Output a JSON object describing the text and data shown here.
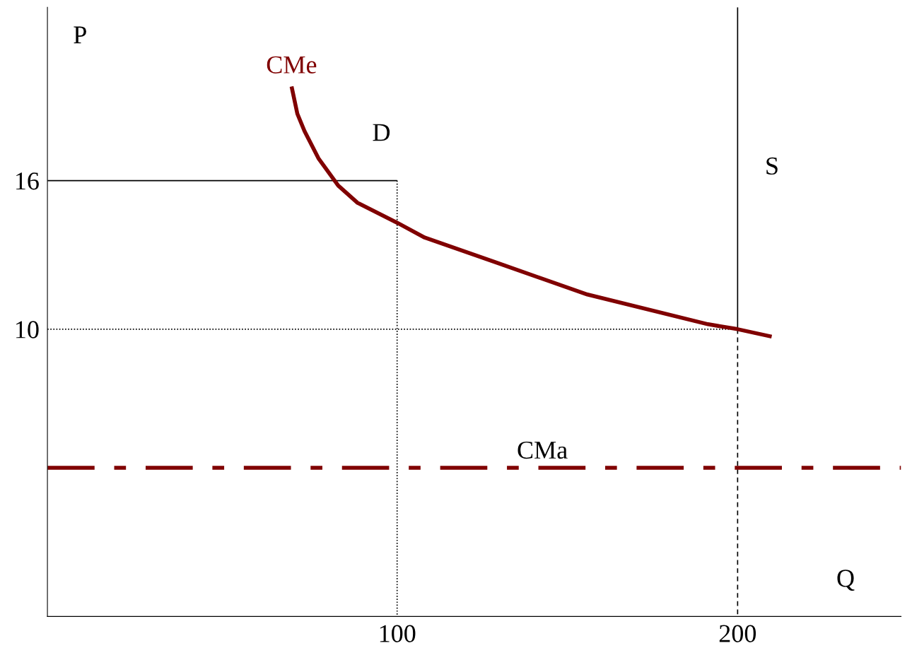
{
  "chart_data": {
    "type": "line",
    "xlabel": "Q",
    "ylabel": "P",
    "xlim": [
      -2.7,
      248
    ],
    "ylim": [
      -1.6,
      23
    ],
    "xticks": [
      100,
      200
    ],
    "yticks": [
      10,
      16
    ],
    "grid": false,
    "series": [
      {
        "name": "D",
        "x": [
          -2.7,
          100
        ],
        "values": [
          16,
          16
        ],
        "color": "#000000",
        "line_style": "solid"
      },
      {
        "x": [
          100,
          100
        ],
        "values": [
          16,
          -1.6
        ],
        "color": "#000000",
        "line_style": "dotted"
      },
      {
        "x": [
          -2.7,
          200
        ],
        "values": [
          10,
          10
        ],
        "color": "#000000",
        "line_style": "dotted"
      },
      {
        "name": "S",
        "x": [
          200,
          200
        ],
        "values": [
          23,
          10
        ],
        "color": "#000000",
        "line_style": "solid"
      },
      {
        "x": [
          200,
          200
        ],
        "values": [
          10,
          -1.6
        ],
        "color": "#000000",
        "line_style": "dashed"
      },
      {
        "name": "CMe",
        "color": "#800000",
        "line_style": "solid",
        "x": [
          69,
          70.7,
          72.8,
          76.9,
          82.7,
          88.4,
          100,
          108.1,
          128.9,
          155.9,
          191.3,
          200,
          210
        ],
        "values": [
          19.8,
          18.7,
          18.0,
          16.9,
          15.8,
          15.1,
          14.3,
          13.7,
          12.7,
          11.4,
          10.2,
          10,
          9.7
        ]
      }
    ],
    "ref_lines": [
      {
        "axis": "y",
        "value": 4.4,
        "label": "CMa",
        "color": "#800000",
        "line_style": "dashdot"
      }
    ]
  }
}
